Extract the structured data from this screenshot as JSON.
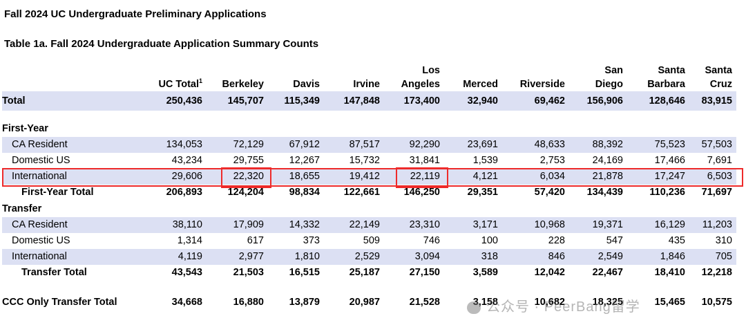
{
  "title": "Fall 2024 UC Undergraduate Preliminary Applications",
  "subtitle": "Table 1a. Fall 2024 Undergraduate Application Summary Counts",
  "columns": [
    {
      "line1": "",
      "line2": "UC Total",
      "sup": "1"
    },
    {
      "line1": "",
      "line2": "Berkeley",
      "sup": ""
    },
    {
      "line1": "",
      "line2": "Davis",
      "sup": ""
    },
    {
      "line1": "",
      "line2": "Irvine",
      "sup": ""
    },
    {
      "line1": "Los",
      "line2": "Angeles",
      "sup": ""
    },
    {
      "line1": "",
      "line2": "Merced",
      "sup": ""
    },
    {
      "line1": "",
      "line2": "Riverside",
      "sup": ""
    },
    {
      "line1": "San",
      "line2": "Diego",
      "sup": ""
    },
    {
      "line1": "Santa",
      "line2": "Barbara",
      "sup": ""
    },
    {
      "line1": "Santa",
      "line2": "Cruz",
      "sup": ""
    }
  ],
  "rows": {
    "total": {
      "label": "Total",
      "values": [
        "250,436",
        "145,707",
        "115,349",
        "147,848",
        "173,400",
        "32,940",
        "69,462",
        "156,906",
        "128,646",
        "83,915"
      ]
    },
    "first_year_heading": "First-Year",
    "fy_ca": {
      "label": "CA Resident",
      "values": [
        "134,053",
        "72,129",
        "67,912",
        "87,517",
        "92,290",
        "23,691",
        "48,633",
        "88,392",
        "75,523",
        "57,503"
      ]
    },
    "fy_dom": {
      "label": "Domestic US",
      "values": [
        "43,234",
        "29,755",
        "12,267",
        "15,732",
        "31,841",
        "1,539",
        "2,753",
        "24,169",
        "17,466",
        "7,691"
      ]
    },
    "fy_intl": {
      "label": "International",
      "values": [
        "29,606",
        "22,320",
        "18,655",
        "19,412",
        "22,119",
        "4,121",
        "6,034",
        "21,878",
        "17,247",
        "6,503"
      ]
    },
    "fy_total": {
      "label": "First-Year Total",
      "values": [
        "206,893",
        "124,204",
        "98,834",
        "122,661",
        "146,250",
        "29,351",
        "57,420",
        "134,439",
        "110,236",
        "71,697"
      ]
    },
    "transfer_heading": "Transfer",
    "tr_ca": {
      "label": "CA Resident",
      "values": [
        "38,110",
        "17,909",
        "14,332",
        "22,149",
        "23,310",
        "3,171",
        "10,968",
        "19,371",
        "16,129",
        "11,203"
      ]
    },
    "tr_dom": {
      "label": "Domestic US",
      "values": [
        "1,314",
        "617",
        "373",
        "509",
        "746",
        "100",
        "228",
        "547",
        "435",
        "310"
      ]
    },
    "tr_intl": {
      "label": "International",
      "values": [
        "4,119",
        "2,977",
        "1,810",
        "2,529",
        "3,094",
        "318",
        "846",
        "2,549",
        "1,846",
        "705"
      ]
    },
    "tr_total": {
      "label": "Transfer Total",
      "values": [
        "43,543",
        "21,503",
        "16,515",
        "25,187",
        "27,150",
        "3,589",
        "12,042",
        "22,467",
        "18,410",
        "12,218"
      ]
    },
    "ccc_total": {
      "label": "CCC Only Transfer Total",
      "values": [
        "34,668",
        "16,880",
        "13,879",
        "20,987",
        "21,528",
        "3,158",
        "10,682",
        "18,325",
        "15,465",
        "10,575"
      ]
    }
  },
  "highlight_color": "#ee2a2a",
  "shade_color": "#dce0f3",
  "watermark": {
    "text": "公众号 · PeerBang留学"
  }
}
